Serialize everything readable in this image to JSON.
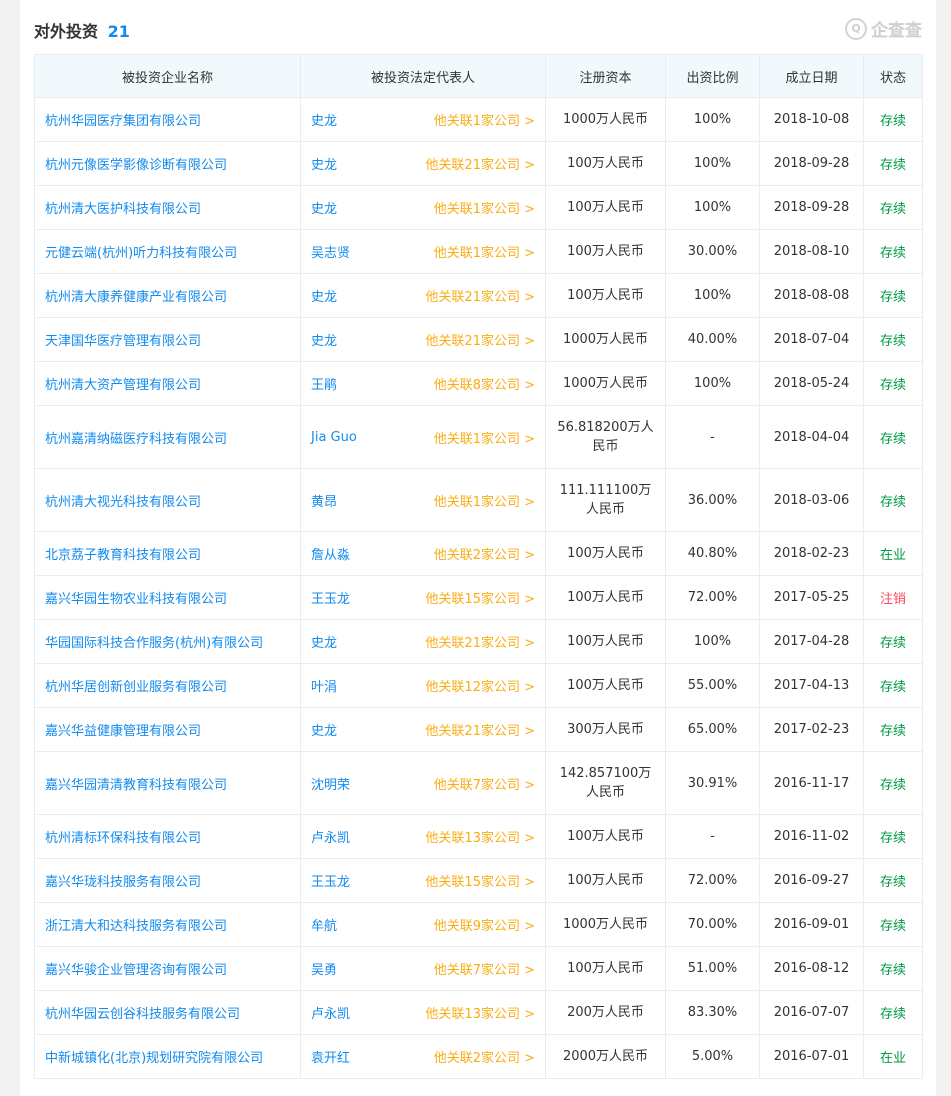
{
  "section": {
    "title": "对外投资",
    "count": "21"
  },
  "brand": {
    "name": "企查查"
  },
  "colors": {
    "link": "#128bed",
    "orange": "#f9ad14",
    "active": "#009944",
    "cancelled": "#fd485e"
  },
  "columns": [
    "被投资企业名称",
    "被投资法定代表人",
    "注册资本",
    "出资比例",
    "成立日期",
    "状态"
  ],
  "rows": [
    {
      "company": "杭州华园医疗集团有限公司",
      "rep": "史龙",
      "related": "他关联1家公司 >",
      "capital": "1000万人民币",
      "ratio": "100%",
      "date": "2018-10-08",
      "status": "存续"
    },
    {
      "company": "杭州元像医学影像诊断有限公司",
      "rep": "史龙",
      "related": "他关联21家公司 >",
      "capital": "100万人民币",
      "ratio": "100%",
      "date": "2018-09-28",
      "status": "存续"
    },
    {
      "company": "杭州清大医护科技有限公司",
      "rep": "史龙",
      "related": "他关联1家公司 >",
      "capital": "100万人民币",
      "ratio": "100%",
      "date": "2018-09-28",
      "status": "存续"
    },
    {
      "company": "元健云端(杭州)听力科技有限公司",
      "rep": "吴志贤",
      "related": "他关联1家公司 >",
      "capital": "100万人民币",
      "ratio": "30.00%",
      "date": "2018-08-10",
      "status": "存续"
    },
    {
      "company": "杭州清大康养健康产业有限公司",
      "rep": "史龙",
      "related": "他关联21家公司 >",
      "capital": "100万人民币",
      "ratio": "100%",
      "date": "2018-08-08",
      "status": "存续"
    },
    {
      "company": "天津国华医疗管理有限公司",
      "rep": "史龙",
      "related": "他关联21家公司 >",
      "capital": "1000万人民币",
      "ratio": "40.00%",
      "date": "2018-07-04",
      "status": "存续"
    },
    {
      "company": "杭州清大资产管理有限公司",
      "rep": "王鹃",
      "related": "他关联8家公司 >",
      "capital": "1000万人民币",
      "ratio": "100%",
      "date": "2018-05-24",
      "status": "存续"
    },
    {
      "company": "杭州嘉清纳磁医疗科技有限公司",
      "rep": "Jia Guo",
      "related": "他关联1家公司 >",
      "capital": "56.818200万人民币",
      "ratio": "-",
      "date": "2018-04-04",
      "status": "存续"
    },
    {
      "company": "杭州清大视光科技有限公司",
      "rep": "黄昂",
      "related": "他关联1家公司 >",
      "capital": "111.111100万人民币",
      "ratio": "36.00%",
      "date": "2018-03-06",
      "status": "存续"
    },
    {
      "company": "北京荔子教育科技有限公司",
      "rep": "詹从淼",
      "related": "他关联2家公司 >",
      "capital": "100万人民币",
      "ratio": "40.80%",
      "date": "2018-02-23",
      "status": "在业"
    },
    {
      "company": "嘉兴华园生物农业科技有限公司",
      "rep": "王玉龙",
      "related": "他关联15家公司 >",
      "capital": "100万人民币",
      "ratio": "72.00%",
      "date": "2017-05-25",
      "status": "注销"
    },
    {
      "company": "华园国际科技合作服务(杭州)有限公司",
      "rep": "史龙",
      "related": "他关联21家公司 >",
      "capital": "100万人民币",
      "ratio": "100%",
      "date": "2017-04-28",
      "status": "存续"
    },
    {
      "company": "杭州华居创新创业服务有限公司",
      "rep": "叶涓",
      "related": "他关联12家公司 >",
      "capital": "100万人民币",
      "ratio": "55.00%",
      "date": "2017-04-13",
      "status": "存续"
    },
    {
      "company": "嘉兴华益健康管理有限公司",
      "rep": "史龙",
      "related": "他关联21家公司 >",
      "capital": "300万人民币",
      "ratio": "65.00%",
      "date": "2017-02-23",
      "status": "存续"
    },
    {
      "company": "嘉兴华园清清教育科技有限公司",
      "rep": "沈明荣",
      "related": "他关联7家公司 >",
      "capital": "142.857100万人民币",
      "ratio": "30.91%",
      "date": "2016-11-17",
      "status": "存续"
    },
    {
      "company": "杭州清标环保科技有限公司",
      "rep": "卢永凯",
      "related": "他关联13家公司 >",
      "capital": "100万人民币",
      "ratio": "-",
      "date": "2016-11-02",
      "status": "存续"
    },
    {
      "company": "嘉兴华珑科技服务有限公司",
      "rep": "王玉龙",
      "related": "他关联15家公司 >",
      "capital": "100万人民币",
      "ratio": "72.00%",
      "date": "2016-09-27",
      "status": "存续"
    },
    {
      "company": "浙江清大和达科技服务有限公司",
      "rep": "牟航",
      "related": "他关联9家公司 >",
      "capital": "1000万人民币",
      "ratio": "70.00%",
      "date": "2016-09-01",
      "status": "存续"
    },
    {
      "company": "嘉兴华骏企业管理咨询有限公司",
      "rep": "吴勇",
      "related": "他关联7家公司 >",
      "capital": "100万人民币",
      "ratio": "51.00%",
      "date": "2016-08-12",
      "status": "存续"
    },
    {
      "company": "杭州华园云创谷科技服务有限公司",
      "rep": "卢永凯",
      "related": "他关联13家公司 >",
      "capital": "200万人民币",
      "ratio": "83.30%",
      "date": "2016-07-07",
      "status": "存续"
    },
    {
      "company": "中新城镇化(北京)规划研究院有限公司",
      "rep": "袁开红",
      "related": "他关联2家公司 >",
      "capital": "2000万人民币",
      "ratio": "5.00%",
      "date": "2016-07-01",
      "status": "在业"
    }
  ]
}
